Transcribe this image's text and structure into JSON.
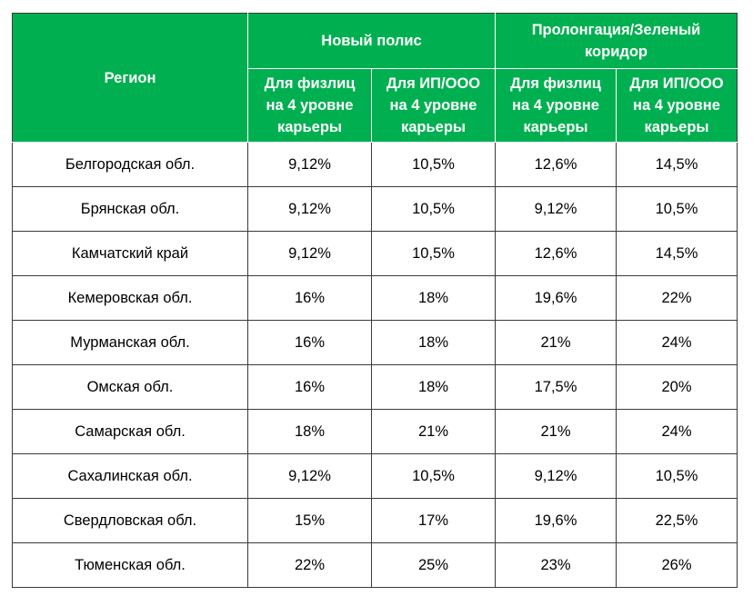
{
  "table": {
    "header": {
      "region": "Регион",
      "group_new": "Новый полис",
      "group_prolong": "Пролонгация/Зеленый коридор",
      "sub_cols": [
        "Для физлиц на 4 уровне карьеры",
        "Для ИП/ООО на 4 уровне карьеры",
        "Для физлиц на 4 уровне карьеры",
        "Для ИП/ООО на 4 уровне карьеры"
      ]
    },
    "rows": [
      {
        "region": "Белгородская обл.",
        "values": [
          "9,12%",
          "10,5%",
          "12,6%",
          "14,5%"
        ]
      },
      {
        "region": "Брянская обл.",
        "values": [
          "9,12%",
          "10,5%",
          "9,12%",
          "10,5%"
        ]
      },
      {
        "region": "Камчатский край",
        "values": [
          "9,12%",
          "10,5%",
          "12,6%",
          "14,5%"
        ]
      },
      {
        "region": "Кемеровская обл.",
        "values": [
          "16%",
          "18%",
          "19,6%",
          "22%"
        ]
      },
      {
        "region": "Мурманская обл.",
        "values": [
          "16%",
          "18%",
          "21%",
          "24%"
        ]
      },
      {
        "region": "Омская обл.",
        "values": [
          "16%",
          "18%",
          "17,5%",
          "20%"
        ]
      },
      {
        "region": "Самарская обл.",
        "values": [
          "18%",
          "21%",
          "21%",
          "24%"
        ]
      },
      {
        "region": "Сахалинская обл.",
        "values": [
          "9,12%",
          "10,5%",
          "9,12%",
          "10,5%"
        ]
      },
      {
        "region": "Свердловская обл.",
        "values": [
          "15%",
          "17%",
          "19,6%",
          "22,5%"
        ]
      },
      {
        "region": "Тюменская обл.",
        "values": [
          "22%",
          "25%",
          "23%",
          "26%"
        ]
      }
    ]
  },
  "colors": {
    "header_bg": "#00b050",
    "header_text": "#ffffff",
    "border": "#3a3a3a"
  }
}
